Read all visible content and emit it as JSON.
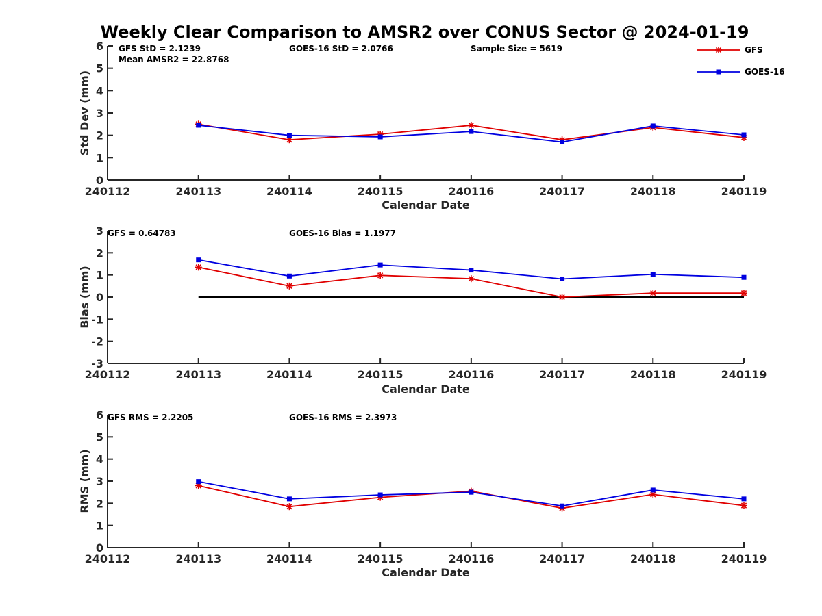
{
  "title": "Weekly Clear Comparison to AMSR2 over CONUS Sector @ 2024-01-19",
  "colors": {
    "gfs": "#e00000",
    "goes": "#0000e0",
    "axis": "#262626",
    "zero": "#000000"
  },
  "legend": {
    "placement": "top-right",
    "entries": [
      "GFS",
      "GOES-16"
    ],
    "markers": [
      "asterisk",
      "square"
    ]
  },
  "chart_data": [
    {
      "type": "line",
      "ylabel": "Std Dev (mm)",
      "xlabel": "Calendar Date",
      "x_ticks": [
        "240112",
        "240113",
        "240114",
        "240115",
        "240116",
        "240117",
        "240118",
        "240119"
      ],
      "ylim": [
        0,
        6
      ],
      "y_ticks": [
        "0",
        "1",
        "2",
        "3",
        "4",
        "5",
        "6"
      ],
      "annotations": [
        "GFS StD = 2.1239",
        "Mean AMSR2 = 22.8768",
        "GOES-16 StD = 2.0766",
        "Sample Size = 5619"
      ],
      "x": [
        "240113",
        "240114",
        "240115",
        "240116",
        "240117",
        "240118",
        "240119"
      ],
      "series": [
        {
          "name": "GFS",
          "values": [
            2.5,
            1.8,
            2.05,
            2.45,
            1.8,
            2.35,
            1.9
          ]
        },
        {
          "name": "GOES-16",
          "values": [
            2.45,
            2.0,
            1.93,
            2.17,
            1.7,
            2.42,
            2.02
          ]
        }
      ],
      "zero_line": false
    },
    {
      "type": "line",
      "ylabel": "Bias (mm)",
      "xlabel": "Calendar Date",
      "x_ticks": [
        "240112",
        "240113",
        "240114",
        "240115",
        "240116",
        "240117",
        "240118",
        "240119"
      ],
      "ylim": [
        -3,
        3
      ],
      "y_ticks": [
        "-3",
        "-2",
        "-1",
        "0",
        "1",
        "2",
        "3"
      ],
      "annotations": [
        "GFS = 0.64783",
        "GOES-16 Bias  = 1.1977"
      ],
      "x": [
        "240113",
        "240114",
        "240115",
        "240116",
        "240117",
        "240118",
        "240119"
      ],
      "series": [
        {
          "name": "GFS",
          "values": [
            1.35,
            0.5,
            0.98,
            0.83,
            0.0,
            0.18,
            0.18
          ]
        },
        {
          "name": "GOES-16",
          "values": [
            1.68,
            0.95,
            1.45,
            1.22,
            0.82,
            1.03,
            0.89
          ]
        }
      ],
      "zero_line": true
    },
    {
      "type": "line",
      "ylabel": "RMS (mm)",
      "xlabel": "Calendar Date",
      "x_ticks": [
        "240112",
        "240113",
        "240114",
        "240115",
        "240116",
        "240117",
        "240118",
        "240119"
      ],
      "ylim": [
        0,
        6
      ],
      "y_ticks": [
        "0",
        "1",
        "2",
        "3",
        "4",
        "5",
        "6"
      ],
      "annotations": [
        "GFS RMS = 2.2205",
        "GOES-16 RMS = 2.3973"
      ],
      "x": [
        "240113",
        "240114",
        "240115",
        "240116",
        "240117",
        "240118",
        "240119"
      ],
      "series": [
        {
          "name": "GFS",
          "values": [
            2.8,
            1.85,
            2.27,
            2.55,
            1.78,
            2.4,
            1.9
          ]
        },
        {
          "name": "GOES-16",
          "values": [
            2.98,
            2.2,
            2.38,
            2.5,
            1.88,
            2.6,
            2.2
          ]
        }
      ],
      "zero_line": false
    }
  ]
}
